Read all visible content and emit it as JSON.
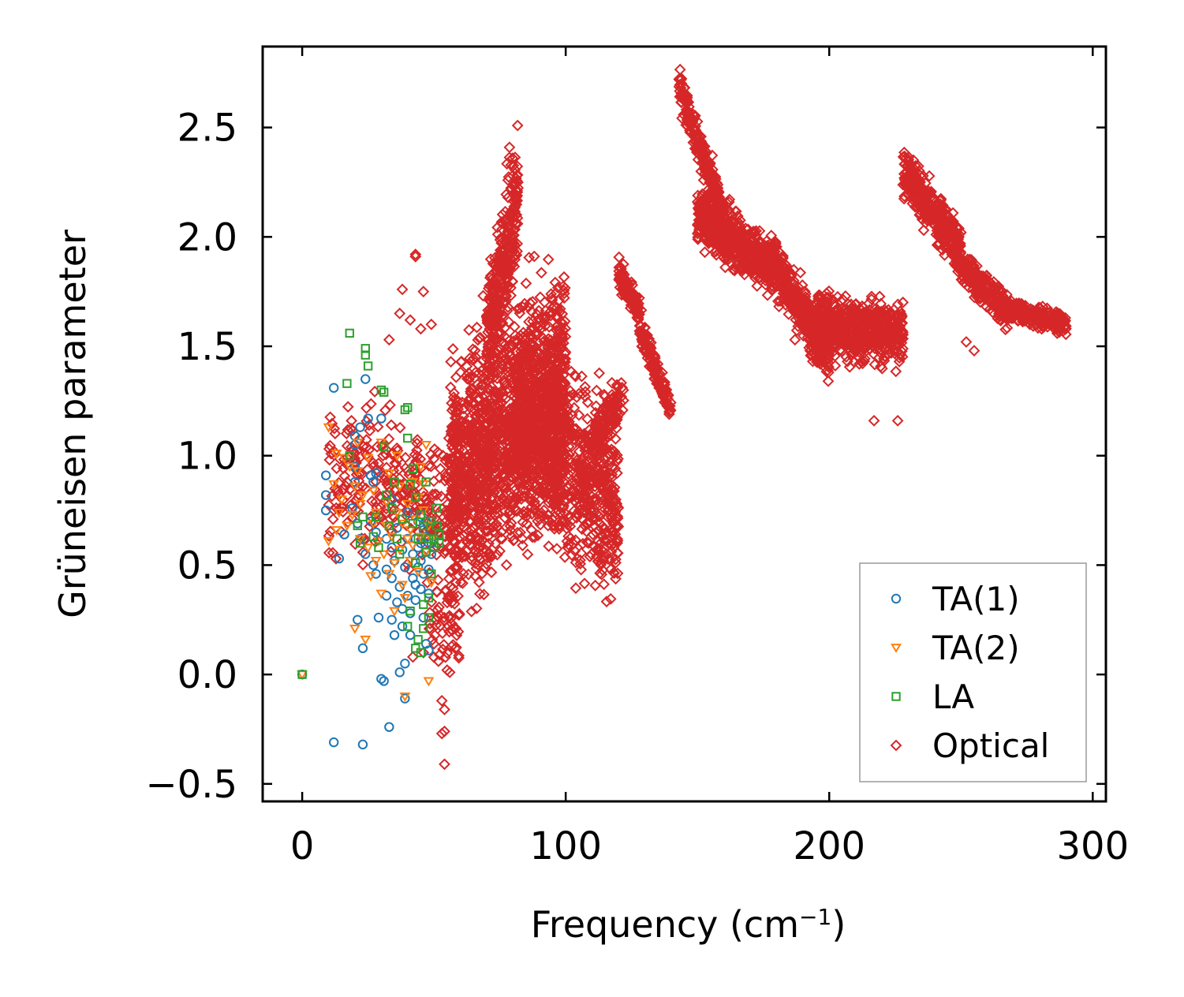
{
  "chart_data": {
    "type": "scatter",
    "title": "",
    "xlabel": "Frequency (cm",
    "xlabel_sup": "−1",
    "xlabel_tail": ")",
    "ylabel": "Grüneisen parameter",
    "xlim": [
      -15,
      305
    ],
    "ylim": [
      -0.58,
      2.87
    ],
    "xticks": [
      0,
      100,
      200,
      300
    ],
    "xtick_labels": [
      "0",
      "100",
      "200",
      "300"
    ],
    "yticks": [
      -0.5,
      0.0,
      0.5,
      1.0,
      1.5,
      2.0,
      2.5
    ],
    "ytick_labels": [
      "−0.5",
      "0.0",
      "0.5",
      "1.0",
      "1.5",
      "2.0",
      "2.5"
    ],
    "grid": false,
    "legend_position": "lower-right",
    "series": [
      {
        "name": "TA(1)",
        "marker": "circle",
        "color": "#1f77b4",
        "points": [
          [
            0,
            0.0
          ],
          [
            9,
            0.91
          ],
          [
            9,
            0.82
          ],
          [
            9,
            0.75
          ],
          [
            12,
            -0.31
          ],
          [
            12,
            1.31
          ],
          [
            14,
            0.53
          ],
          [
            16,
            0.64
          ],
          [
            19,
            0.76
          ],
          [
            20,
            0.88
          ],
          [
            20,
            0.95
          ],
          [
            20,
            1.05
          ],
          [
            20,
            1.09
          ],
          [
            21,
            0.25
          ],
          [
            21,
            0.69
          ],
          [
            22,
            1.13
          ],
          [
            22,
            0.62
          ],
          [
            23,
            0.12
          ],
          [
            23,
            -0.32
          ],
          [
            24,
            1.35
          ],
          [
            24,
            0.55
          ],
          [
            25,
            1.17
          ],
          [
            26,
            0.91
          ],
          [
            26,
            0.7
          ],
          [
            27,
            0.88
          ],
          [
            27,
            0.5
          ],
          [
            28,
            0.92
          ],
          [
            28,
            0.65
          ],
          [
            28,
            0.46
          ],
          [
            29,
            0.26
          ],
          [
            30,
            1.17
          ],
          [
            30,
            -0.02
          ],
          [
            31,
            -0.03
          ],
          [
            32,
            0.48
          ],
          [
            32,
            0.62
          ],
          [
            32,
            0.36
          ],
          [
            33,
            -0.24
          ],
          [
            34,
            0.8
          ],
          [
            34,
            0.58
          ],
          [
            34,
            0.44
          ],
          [
            34,
            0.25
          ],
          [
            35,
            0.18
          ],
          [
            35,
            0.52
          ],
          [
            36,
            0.67
          ],
          [
            36,
            0.33
          ],
          [
            37,
            0.01
          ],
          [
            37,
            0.4
          ],
          [
            38,
            0.57
          ],
          [
            38,
            0.3
          ],
          [
            38,
            0.22
          ],
          [
            39,
            0.05
          ],
          [
            39,
            0.49
          ],
          [
            39,
            -0.11
          ],
          [
            40,
            0.62
          ],
          [
            40,
            0.36
          ],
          [
            40,
            0.74
          ],
          [
            41,
            0.18
          ],
          [
            41,
            0.28
          ],
          [
            42,
            0.44
          ],
          [
            42,
            0.55
          ],
          [
            43,
            0.34
          ],
          [
            43,
            0.62
          ],
          [
            43,
            0.41
          ],
          [
            44,
            0.58
          ],
          [
            44,
            0.49
          ],
          [
            44,
            0.7
          ],
          [
            45,
            0.72
          ],
          [
            45,
            0.6
          ],
          [
            45,
            0.52
          ],
          [
            45,
            0.39
          ],
          [
            46,
            0.46
          ],
          [
            46,
            0.66
          ],
          [
            46,
            0.26
          ],
          [
            47,
            0.56
          ],
          [
            47,
            0.63
          ],
          [
            47,
            0.7
          ],
          [
            47,
            0.14
          ],
          [
            48,
            0.37
          ],
          [
            48,
            0.48
          ],
          [
            48,
            0.11
          ],
          [
            49,
            0.6
          ],
          [
            49,
            0.55
          ]
        ]
      },
      {
        "name": "TA(2)",
        "marker": "triangle-down",
        "color": "#ff7f0e",
        "points": [
          [
            0,
            0.0
          ],
          [
            10,
            1.13
          ],
          [
            10,
            0.61
          ],
          [
            12,
            0.87
          ],
          [
            13,
            1.01
          ],
          [
            13,
            0.66
          ],
          [
            14,
            0.74
          ],
          [
            15,
            0.8
          ],
          [
            16,
            0.99
          ],
          [
            17,
            0.68
          ],
          [
            18,
            0.95
          ],
          [
            19,
            0.73
          ],
          [
            20,
            0.21
          ],
          [
            20,
            0.86
          ],
          [
            21,
            0.93
          ],
          [
            21,
            1.06
          ],
          [
            22,
            0.62
          ],
          [
            22,
            0.78
          ],
          [
            23,
            0.82
          ],
          [
            24,
            0.16
          ],
          [
            25,
            0.99
          ],
          [
            25,
            0.58
          ],
          [
            26,
            0.45
          ],
          [
            27,
            0.69
          ],
          [
            27,
            0.84
          ],
          [
            28,
            0.74
          ],
          [
            28,
            0.52
          ],
          [
            29,
            0.61
          ],
          [
            30,
            0.37
          ],
          [
            30,
            1.06
          ],
          [
            31,
            0.55
          ],
          [
            32,
            0.68
          ],
          [
            32,
            0.79
          ],
          [
            33,
            0.46
          ],
          [
            33,
            0.92
          ],
          [
            34,
            0.63
          ],
          [
            35,
            0.51
          ],
          [
            35,
            0.29
          ],
          [
            36,
            0.74
          ],
          [
            36,
            1.0
          ],
          [
            37,
            0.57
          ],
          [
            37,
            0.86
          ],
          [
            38,
            0.69
          ],
          [
            38,
            0.41
          ],
          [
            39,
            0.35
          ],
          [
            39,
            -0.1
          ],
          [
            40,
            0.62
          ],
          [
            40,
            0.78
          ],
          [
            41,
            0.66
          ],
          [
            41,
            0.52
          ],
          [
            42,
            0.88
          ],
          [
            42,
            0.59
          ],
          [
            43,
            0.71
          ],
          [
            44,
            0.47
          ],
          [
            44,
            0.81
          ],
          [
            45,
            0.95
          ],
          [
            45,
            0.63
          ],
          [
            46,
            0.75
          ],
          [
            46,
            0.87
          ],
          [
            47,
            1.05
          ],
          [
            47,
            0.56
          ],
          [
            48,
            0.68
          ],
          [
            48,
            -0.03
          ],
          [
            49,
            0.62
          ],
          [
            49,
            0.42
          ]
        ]
      },
      {
        "name": "LA",
        "marker": "square",
        "color": "#2ca02c",
        "points": [
          [
            0,
            0.0
          ],
          [
            17,
            1.33
          ],
          [
            18,
            1.56
          ],
          [
            18,
            1.0
          ],
          [
            21,
            0.68
          ],
          [
            22,
            0.6
          ],
          [
            23,
            0.72
          ],
          [
            24,
            1.49
          ],
          [
            24,
            1.46
          ],
          [
            25,
            1.41
          ],
          [
            27,
            0.63
          ],
          [
            28,
            0.72
          ],
          [
            29,
            0.58
          ],
          [
            30,
            1.3
          ],
          [
            31,
            1.04
          ],
          [
            31,
            1.29
          ],
          [
            32,
            0.82
          ],
          [
            33,
            0.68
          ],
          [
            34,
            0.76
          ],
          [
            35,
            0.88
          ],
          [
            36,
            0.62
          ],
          [
            37,
            0.55
          ],
          [
            38,
            0.71
          ],
          [
            39,
            1.21
          ],
          [
            40,
            1.22
          ],
          [
            40,
            1.08
          ],
          [
            41,
            0.87
          ],
          [
            42,
            0.94
          ],
          [
            42,
            0.69
          ],
          [
            43,
            0.81
          ],
          [
            43,
            0.51
          ],
          [
            44,
            0.62
          ],
          [
            44,
            0.16
          ],
          [
            45,
            0.1
          ],
          [
            45,
            0.73
          ],
          [
            46,
            0.68
          ],
          [
            46,
            0.32
          ],
          [
            47,
            0.88
          ],
          [
            47,
            0.56
          ],
          [
            48,
            0.62
          ],
          [
            48,
            0.35
          ],
          [
            49,
            0.7
          ],
          [
            49,
            0.46
          ],
          [
            50,
            0.62
          ],
          [
            50,
            0.58
          ],
          [
            51,
            0.76
          ],
          [
            51,
            0.68
          ],
          [
            52,
            0.6
          ],
          [
            52,
            0.64
          ],
          [
            40,
            0.22
          ],
          [
            41,
            0.29
          ],
          [
            43,
            0.12
          ],
          [
            46,
            0.21
          ],
          [
            48,
            0.26
          ]
        ]
      },
      {
        "name": "Optical",
        "marker": "diamond",
        "color": "#d62728",
        "regions": [
          {
            "x": [
              10,
              60
            ],
            "center": [
              0.9,
              0.8
            ],
            "spread": 0.32,
            "count": 320
          },
          {
            "x": [
              48,
              60
            ],
            "center": [
              0.25,
              0.25
            ],
            "spread": 0.22,
            "count": 60
          },
          {
            "x": [
              56,
              100
            ],
            "center": [
              0.85,
              1.35
            ],
            "spread": 0.5,
            "count": 1500
          },
          {
            "x": [
              70,
              82
            ],
            "center": [
              1.5,
              2.2
            ],
            "spread": 0.28,
            "count": 350
          },
          {
            "x": [
              80,
              120
            ],
            "center": [
              1.2,
              0.75
            ],
            "spread": 0.4,
            "count": 900
          },
          {
            "x": [
              110,
              122
            ],
            "center": [
              1.05,
              1.3
            ],
            "spread": 0.12,
            "count": 120
          },
          {
            "x": [
              120,
              128
            ],
            "center": [
              1.85,
              1.65
            ],
            "spread": 0.06,
            "count": 120
          },
          {
            "x": [
              128,
              140
            ],
            "center": [
              1.6,
              1.2
            ],
            "spread": 0.06,
            "count": 140
          },
          {
            "x": [
              143,
              160
            ],
            "center": [
              2.68,
              2.1
            ],
            "spread": 0.08,
            "count": 220
          },
          {
            "x": [
              150,
              180
            ],
            "center": [
              2.1,
              1.85
            ],
            "spread": 0.12,
            "count": 600
          },
          {
            "x": [
              178,
              200
            ],
            "center": [
              1.9,
              1.45
            ],
            "spread": 0.12,
            "count": 400
          },
          {
            "x": [
              195,
              228
            ],
            "center": [
              1.6,
              1.55
            ],
            "spread": 0.14,
            "count": 600
          },
          {
            "x": [
              228,
              250
            ],
            "center": [
              2.3,
              1.95
            ],
            "spread": 0.1,
            "count": 360
          },
          {
            "x": [
              248,
              268
            ],
            "center": [
              1.9,
              1.65
            ],
            "spread": 0.08,
            "count": 240
          },
          {
            "x": [
              265,
              290
            ],
            "center": [
              1.68,
              1.6
            ],
            "spread": 0.05,
            "count": 240
          }
        ],
        "extra_points": [
          [
            43,
            1.92
          ],
          [
            43,
            1.91
          ],
          [
            38,
            1.76
          ],
          [
            46,
            1.75
          ],
          [
            37,
            1.65
          ],
          [
            41,
            1.62
          ],
          [
            45,
            1.58
          ],
          [
            49,
            1.6
          ],
          [
            33,
            1.53
          ],
          [
            53,
            -0.12
          ],
          [
            54,
            -0.16
          ],
          [
            53,
            -0.27
          ],
          [
            54,
            -0.26
          ],
          [
            54,
            -0.41
          ],
          [
            56,
            0.01
          ],
          [
            55,
            0.02
          ],
          [
            46,
            0.1
          ],
          [
            50,
            0.14
          ],
          [
            42,
            0.08
          ],
          [
            143,
            2.72
          ],
          [
            144,
            2.7
          ],
          [
            145,
            2.68
          ],
          [
            146,
            2.58
          ],
          [
            148,
            2.53
          ],
          [
            226,
            1.16
          ],
          [
            217,
            1.16
          ],
          [
            187,
            1.53
          ],
          [
            155,
            2.05
          ],
          [
            255,
            1.48
          ],
          [
            252,
            1.52
          ]
        ]
      }
    ]
  }
}
